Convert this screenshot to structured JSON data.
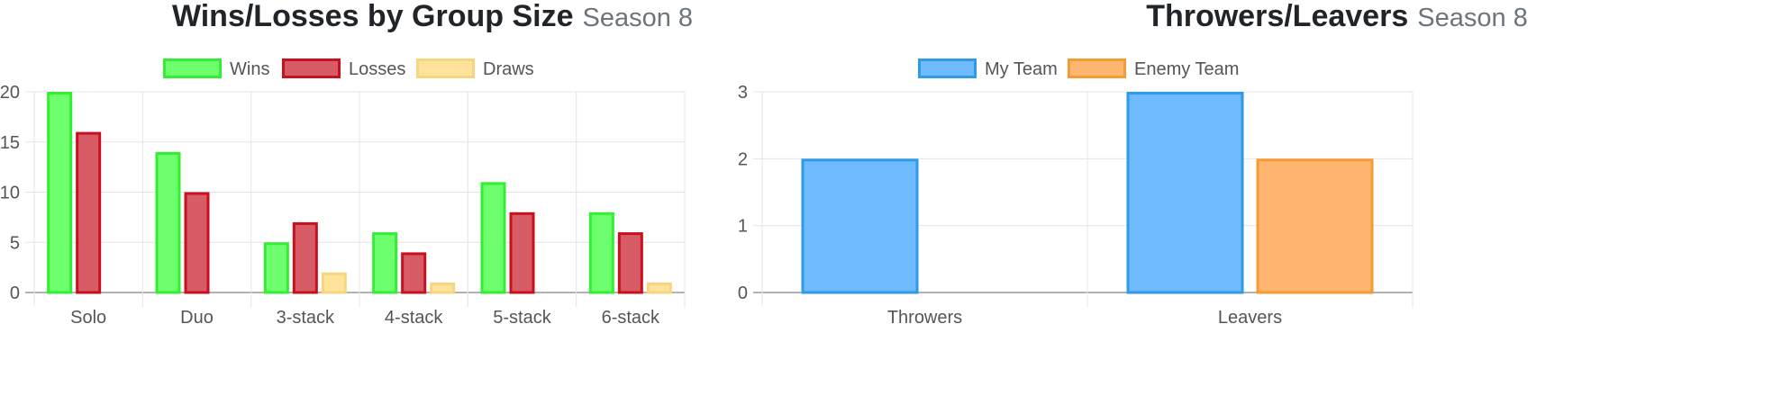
{
  "charts": [
    {
      "title": "Wins/Losses by Group Size",
      "subtitle": "Season 8"
    },
    {
      "title": "Throwers/Leavers",
      "subtitle": "Season 8"
    }
  ],
  "colors": {
    "wins_fill": "rgba(102,255,102,0.95)",
    "wins_border": "#33ee33",
    "losses_fill": "rgba(214,83,94,0.95)",
    "losses_border": "#c8101e",
    "draws_fill": "rgba(255,226,150,0.95)",
    "draws_border": "#f5d57f",
    "my_team_fill": "rgba(107,185,255,0.97)",
    "my_team_border": "#2e9ae8",
    "enemy_team_fill": "rgba(255,180,108,0.97)",
    "enemy_team_border": "#f79a32",
    "grid": "#e4e4e4",
    "axis": "#999999",
    "tick_text": "#555555",
    "legend_text": "#555555"
  },
  "chart_data": [
    {
      "type": "bar",
      "title": "Wins/Losses by Group Size",
      "subtitle": "Season 8",
      "categories": [
        "Solo",
        "Duo",
        "3-stack",
        "4-stack",
        "5-stack",
        "6-stack"
      ],
      "series": [
        {
          "name": "Wins",
          "values": [
            20,
            14,
            5,
            6,
            11,
            8
          ]
        },
        {
          "name": "Losses",
          "values": [
            16,
            10,
            7,
            4,
            8,
            6
          ]
        },
        {
          "name": "Draws",
          "values": [
            0,
            0,
            2,
            1,
            0,
            1
          ]
        }
      ],
      "ylim": [
        0,
        20
      ],
      "yticks": [
        0,
        5,
        10,
        15,
        20
      ],
      "legend": "top",
      "grid": true
    },
    {
      "type": "bar",
      "title": "Throwers/Leavers",
      "subtitle": "Season 8",
      "categories": [
        "Throwers",
        "Leavers"
      ],
      "series": [
        {
          "name": "My Team",
          "values": [
            2,
            3
          ]
        },
        {
          "name": "Enemy Team",
          "values": [
            0,
            2
          ]
        }
      ],
      "ylim": [
        0,
        3
      ],
      "yticks": [
        0,
        1,
        2,
        3
      ],
      "legend": "top",
      "grid": true
    }
  ]
}
